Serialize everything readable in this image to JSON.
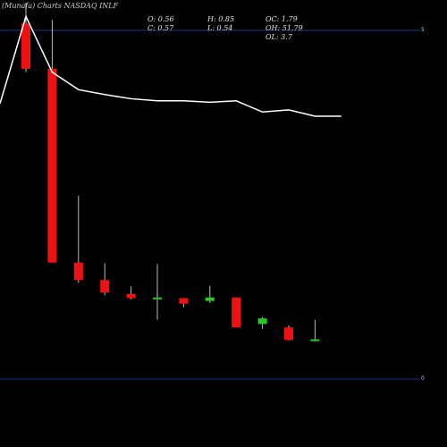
{
  "chart_data": {
    "type": "candlestick",
    "title": "(Munafa) Charts NASDAQ INLF",
    "stats": {
      "o": "O: 0.56",
      "h": "H: 0.85",
      "oc": "OC: 1.79",
      "c": "C: 0.57",
      "l": "L: 0.54",
      "oh": "OH: 51.79",
      "ol": "OL: 3.7"
    },
    "y_ticks": [
      {
        "value": 5,
        "label": "5"
      },
      {
        "value": 0,
        "label": "0"
      }
    ],
    "ylim": [
      -0.2,
      5.2
    ],
    "colors": {
      "up": "#22cc22",
      "down": "#ee1111",
      "line": "#ffffff",
      "grid": "#1e3a8a",
      "background": "#000000"
    },
    "candles": [
      {
        "o": 5.1,
        "h": 5.4,
        "l": 4.4,
        "c": 4.45
      },
      {
        "o": 4.45,
        "h": 5.15,
        "l": 1.67,
        "c": 1.67
      },
      {
        "o": 1.67,
        "h": 2.63,
        "l": 1.38,
        "c": 1.42
      },
      {
        "o": 1.42,
        "h": 1.66,
        "l": 1.2,
        "c": 1.24
      },
      {
        "o": 1.22,
        "h": 1.33,
        "l": 1.14,
        "c": 1.16
      },
      {
        "o": 1.17,
        "h": 1.65,
        "l": 0.85,
        "c": 1.17
      },
      {
        "o": 1.16,
        "h": 1.16,
        "l": 1.03,
        "c": 1.08
      },
      {
        "o": 1.12,
        "h": 1.34,
        "l": 1.09,
        "c": 1.17
      },
      {
        "o": 1.17,
        "h": 1.17,
        "l": 0.74,
        "c": 0.74
      },
      {
        "o": 0.79,
        "h": 0.89,
        "l": 0.72,
        "c": 0.87
      },
      {
        "o": 0.74,
        "h": 0.77,
        "l": 0.55,
        "c": 0.56
      },
      {
        "o": 0.56,
        "h": 0.85,
        "l": 0.54,
        "c": 0.57
      }
    ],
    "ma_line": [
      3.95,
      5.2,
      4.4,
      4.15,
      4.08,
      4.02,
      3.99,
      3.99,
      3.97,
      3.99,
      3.83,
      3.86,
      3.77,
      3.77
    ]
  }
}
